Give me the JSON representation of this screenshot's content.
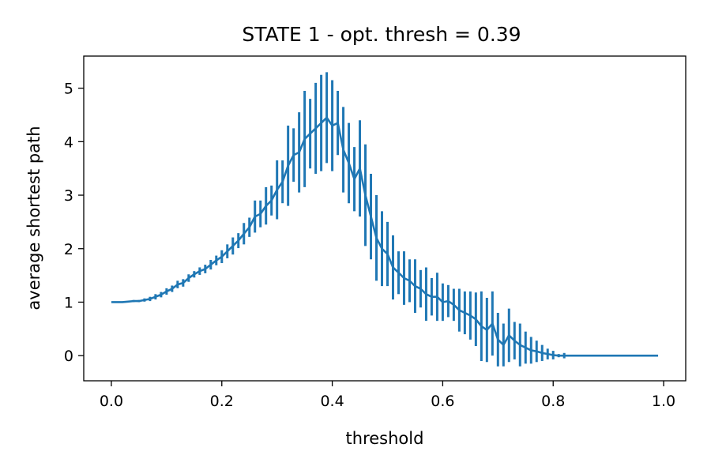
{
  "chart_data": {
    "type": "line",
    "title": "STATE 1  - opt. thresh = 0.39",
    "xlabel": "threshold",
    "ylabel": "average shortest path",
    "xlim": [
      -0.05,
      1.04
    ],
    "ylim": [
      -0.47,
      5.6
    ],
    "xticks": [
      0.0,
      0.2,
      0.4,
      0.6,
      0.8,
      1.0
    ],
    "xtick_labels": [
      "0.0",
      "0.2",
      "0.4",
      "0.6",
      "0.8",
      "1.0"
    ],
    "yticks": [
      0,
      1,
      2,
      3,
      4,
      5
    ],
    "ytick_labels": [
      "0",
      "1",
      "2",
      "3",
      "4",
      "5"
    ],
    "grid": false,
    "legend": "none",
    "color": "#1f77b4",
    "series": [
      {
        "x": [
          0.0,
          0.01,
          0.02,
          0.03,
          0.04,
          0.05,
          0.06,
          0.07,
          0.08,
          0.09,
          0.1,
          0.11,
          0.12,
          0.13,
          0.14,
          0.15,
          0.16,
          0.17,
          0.18,
          0.19,
          0.2,
          0.21,
          0.22,
          0.23,
          0.24,
          0.25,
          0.26,
          0.27,
          0.28,
          0.29,
          0.3,
          0.31,
          0.32,
          0.33,
          0.34,
          0.35,
          0.36,
          0.37,
          0.38,
          0.39,
          0.4,
          0.41,
          0.42,
          0.43,
          0.44,
          0.45,
          0.46,
          0.47,
          0.48,
          0.49,
          0.5,
          0.51,
          0.52,
          0.53,
          0.54,
          0.55,
          0.56,
          0.57,
          0.58,
          0.59,
          0.6,
          0.61,
          0.62,
          0.63,
          0.64,
          0.65,
          0.66,
          0.67,
          0.68,
          0.69,
          0.7,
          0.71,
          0.72,
          0.73,
          0.74,
          0.75,
          0.76,
          0.77,
          0.78,
          0.79,
          0.8,
          0.81,
          0.82,
          0.83,
          0.84,
          0.85,
          0.86,
          0.87,
          0.88,
          0.89,
          0.9,
          0.91,
          0.92,
          0.93,
          0.94,
          0.95,
          0.96,
          0.97,
          0.98,
          0.99
        ],
        "y": [
          1.0,
          1.0,
          1.0,
          1.01,
          1.02,
          1.02,
          1.04,
          1.06,
          1.1,
          1.14,
          1.2,
          1.25,
          1.33,
          1.36,
          1.45,
          1.52,
          1.58,
          1.62,
          1.7,
          1.78,
          1.85,
          1.95,
          2.05,
          2.15,
          2.28,
          2.4,
          2.6,
          2.65,
          2.8,
          2.9,
          3.1,
          3.25,
          3.55,
          3.75,
          3.8,
          4.05,
          4.15,
          4.25,
          4.35,
          4.45,
          4.3,
          4.35,
          3.85,
          3.6,
          3.3,
          3.5,
          3.0,
          2.6,
          2.2,
          2.0,
          1.9,
          1.65,
          1.55,
          1.45,
          1.4,
          1.3,
          1.25,
          1.15,
          1.1,
          1.1,
          1.0,
          1.02,
          0.95,
          0.85,
          0.8,
          0.75,
          0.68,
          0.55,
          0.48,
          0.6,
          0.3,
          0.2,
          0.38,
          0.28,
          0.2,
          0.15,
          0.1,
          0.08,
          0.05,
          0.03,
          0.01,
          0.0,
          0.0,
          0.0,
          0.0,
          0.0,
          0.0,
          0.0,
          0.0,
          0.0,
          0.0,
          0.0,
          0.0,
          0.0,
          0.0,
          0.0,
          0.0,
          0.0,
          0.0,
          0.0
        ],
        "error": [
          0.0,
          0.0,
          0.0,
          0.01,
          0.02,
          0.02,
          0.03,
          0.04,
          0.05,
          0.05,
          0.06,
          0.06,
          0.07,
          0.07,
          0.07,
          0.06,
          0.07,
          0.08,
          0.09,
          0.09,
          0.12,
          0.13,
          0.16,
          0.14,
          0.2,
          0.18,
          0.3,
          0.25,
          0.35,
          0.28,
          0.55,
          0.4,
          0.75,
          0.5,
          0.75,
          0.9,
          0.65,
          0.85,
          0.9,
          0.85,
          0.85,
          0.6,
          0.8,
          0.75,
          0.6,
          0.9,
          0.95,
          0.8,
          0.8,
          0.7,
          0.6,
          0.6,
          0.4,
          0.5,
          0.4,
          0.5,
          0.35,
          0.5,
          0.35,
          0.45,
          0.35,
          0.3,
          0.3,
          0.4,
          0.4,
          0.45,
          0.5,
          0.65,
          0.6,
          0.6,
          0.5,
          0.4,
          0.5,
          0.35,
          0.4,
          0.3,
          0.25,
          0.2,
          0.15,
          0.1,
          0.08,
          0.03,
          0.05,
          0.0,
          0.0,
          0.0,
          0.0,
          0.0,
          0.0,
          0.0,
          0.0,
          0.0,
          0.0,
          0.0,
          0.0,
          0.0,
          0.0,
          0.0,
          0.0,
          0.0
        ]
      }
    ]
  }
}
